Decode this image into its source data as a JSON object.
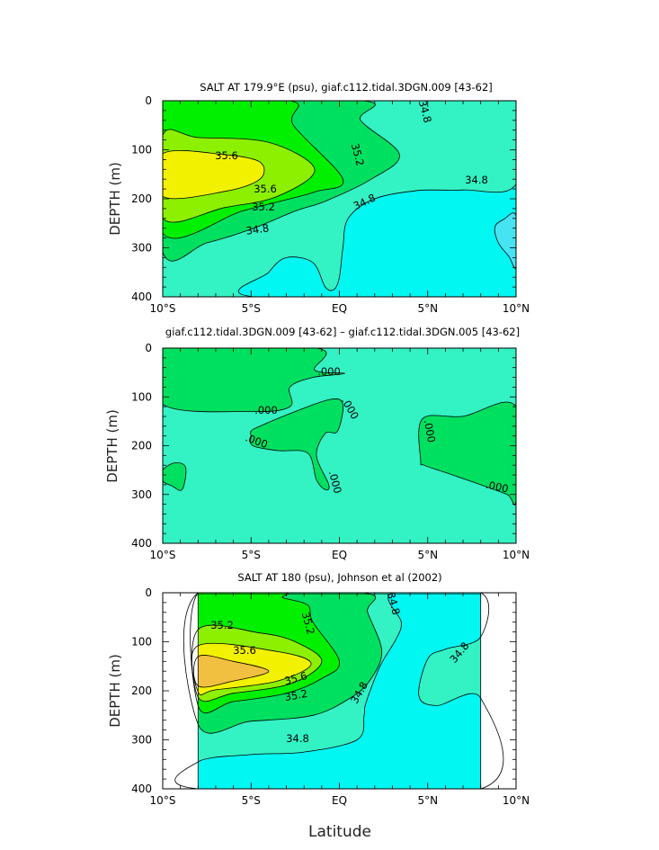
{
  "chart_data": [
    {
      "type": "contour",
      "title": "SALT AT 179.9°E (psu), giaf.c112.tidal.3DGN.009 [43-62]",
      "ylabel": "DEPTH (m)",
      "xlim": [
        -10,
        10
      ],
      "ylim": [
        400,
        0
      ],
      "xticks": [
        "10°S",
        "5°S",
        "EQ",
        "5°N",
        "10°N"
      ],
      "yticks": [
        "0",
        "100",
        "200",
        "300",
        "400"
      ],
      "contour_labels": [
        "35.6",
        "35.6",
        "35.2",
        "35.2",
        "34.8",
        "34.8",
        "34.8"
      ],
      "regions": [
        {
          "value": "34.8-35.0",
          "color": "#33f2c4",
          "points": [
            [
              -10,
              0
            ],
            [
              10,
              0
            ],
            [
              10,
              400
            ],
            [
              -10,
              400
            ]
          ]
        },
        {
          "value": "<34.8",
          "color": "#00f7f2",
          "points": [
            [
              4.5,
              0
            ],
            [
              10,
              0
            ],
            [
              10,
              170
            ],
            [
              7,
              182
            ],
            [
              4.5,
              183
            ],
            [
              2,
              200
            ],
            [
              0.5,
              240
            ],
            [
              0.2,
              300
            ],
            [
              0,
              360
            ],
            [
              -0.3,
              385
            ],
            [
              -0.8,
              380
            ],
            [
              -1.5,
              330
            ],
            [
              -3,
              320
            ],
            [
              -4,
              350
            ],
            [
              -4.8,
              400
            ],
            [
              10,
              400
            ],
            [
              10,
              175
            ],
            [
              10,
              0
            ]
          ]
        },
        {
          "value": "<34.6",
          "color": "#46e4f2",
          "points": [
            [
              10,
              235
            ],
            [
              9.3,
              242
            ],
            [
              8.8,
              258
            ],
            [
              9.0,
              290
            ],
            [
              9.6,
              318
            ],
            [
              10,
              338
            ]
          ]
        },
        {
          "value": "35.0-35.2",
          "color": "#00e060",
          "points": [
            [
              -10,
              0
            ],
            [
              1.3,
              0
            ],
            [
              1.2,
              40
            ],
            [
              3.4,
              110
            ],
            [
              1.8,
              160
            ],
            [
              -0.8,
              205
            ],
            [
              -2.5,
              225
            ],
            [
              -5,
              262
            ],
            [
              -7.5,
              290
            ],
            [
              -10,
              308
            ]
          ]
        },
        {
          "value": "35.2-35.4",
          "color": "#00f000",
          "points": [
            [
              -10,
              0
            ],
            [
              -2.8,
              0
            ],
            [
              -2.6,
              50
            ],
            [
              0.2,
              160
            ],
            [
              -1.3,
              185
            ],
            [
              -2.8,
              200
            ],
            [
              -5.5,
              225
            ],
            [
              -10,
              270
            ]
          ]
        },
        {
          "value": "35.4-35.6",
          "color": "#8cf000",
          "points": [
            [
              -10,
              70
            ],
            [
              -8,
              75
            ],
            [
              -4,
              85
            ],
            [
              -1.4,
              140
            ],
            [
              -3.5,
              195
            ],
            [
              -6.5,
              218
            ],
            [
              -10,
              240
            ]
          ]
        },
        {
          "value": ">35.6",
          "color": "#f2f200",
          "points": [
            [
              -10,
              108
            ],
            [
              -6.5,
              110
            ],
            [
              -4.5,
              125
            ],
            [
              -4.5,
              160
            ],
            [
              -6.5,
              185
            ],
            [
              -10,
              195
            ]
          ]
        }
      ]
    },
    {
      "type": "contour",
      "title": "giaf.c112.tidal.3DGN.009 [43-62] – giaf.c112.tidal.3DGN.005 [43-62]",
      "ylabel": "DEPTH (m)",
      "xlim": [
        -10,
        10
      ],
      "ylim": [
        400,
        0
      ],
      "xticks": [
        "10°S",
        "5°S",
        "EQ",
        "5°N",
        "10°N"
      ],
      "yticks": [
        "0",
        "100",
        "200",
        "300",
        "400"
      ],
      "contour_labels": [
        ".000",
        ".000",
        ".000",
        ".000",
        ".000",
        ".000",
        ".000"
      ],
      "regions": [
        {
          "value": "<0",
          "color": "#33f2c4",
          "points": [
            [
              -10,
              0
            ],
            [
              10,
              0
            ],
            [
              10,
              400
            ],
            [
              -10,
              400
            ]
          ]
        },
        {
          "value": ">0",
          "color": "#00e060",
          "points": [
            [
              -10,
              0
            ],
            [
              -1.3,
              0
            ],
            [
              -1.4,
              45
            ],
            [
              0.3,
              52
            ],
            [
              -1.5,
              60
            ],
            [
              -2.8,
              80
            ],
            [
              -2.8,
              120
            ],
            [
              -5,
              130
            ],
            [
              -10,
              115
            ]
          ]
        },
        {
          "value": ">0",
          "color": "#00e060",
          "points": [
            [
              -5,
              170
            ],
            [
              -4.5,
              160
            ],
            [
              -2.5,
              130
            ],
            [
              -0.5,
              105
            ],
            [
              0.2,
              115
            ],
            [
              -0.1,
              170
            ],
            [
              -0.8,
              175
            ],
            [
              -1.3,
              220
            ],
            [
              -0.6,
              280
            ],
            [
              -0.8,
              290
            ],
            [
              -1.3,
              270
            ],
            [
              -1.8,
              215
            ],
            [
              -3.5,
              210
            ],
            [
              -4.9,
              200
            ],
            [
              -5,
              180
            ]
          ]
        },
        {
          "value": ">0",
          "color": "#00e060",
          "points": [
            [
              4.6,
              230
            ],
            [
              4.7,
              145
            ],
            [
              7,
              140
            ],
            [
              10,
              120
            ],
            [
              10,
              310
            ],
            [
              9.5,
              300
            ],
            [
              8,
              280
            ],
            [
              6,
              255
            ],
            [
              4.8,
              240
            ]
          ]
        },
        {
          "value": ">0",
          "color": "#00e060",
          "points": [
            [
              -10,
              250
            ],
            [
              -9.3,
              235
            ],
            [
              -8.7,
              245
            ],
            [
              -8.9,
              290
            ],
            [
              -9.5,
              282
            ],
            [
              -10,
              272
            ]
          ]
        }
      ]
    },
    {
      "type": "contour",
      "title": "SALT AT 180 (psu), Johnson et al (2002)",
      "ylabel": "DEPTH (m)",
      "xlabel": "Latitude",
      "xlim": [
        -10,
        10
      ],
      "ylim": [
        400,
        0
      ],
      "xticks": [
        "10°S",
        "5°S",
        "EQ",
        "5°N",
        "10°N"
      ],
      "yticks": [
        "0",
        "100",
        "200",
        "300",
        "400"
      ],
      "data_extent": [
        -8,
        8
      ],
      "contour_labels": [
        "35.2",
        "35.2",
        "35.6",
        "35.6",
        "35.2",
        "34.8",
        "34.8",
        "34.8",
        "34.8"
      ],
      "regions": [
        {
          "value": "34.8-35.0",
          "color": "#33f2c4",
          "points": [
            [
              -8,
              0
            ],
            [
              8,
              0
            ],
            [
              8,
              400
            ],
            [
              -8,
              400
            ]
          ]
        },
        {
          "value": "<34.8",
          "color": "#00f7f2",
          "points": [
            [
              3,
              0
            ],
            [
              8,
              0
            ],
            [
              8,
              90
            ],
            [
              6,
              115
            ],
            [
              5,
              135
            ],
            [
              4.5,
              210
            ],
            [
              5.5,
              230
            ],
            [
              8,
              215
            ],
            [
              8,
              400
            ],
            [
              -8,
              400
            ],
            [
              -8,
              345
            ],
            [
              -5,
              330
            ],
            [
              -2,
              325
            ],
            [
              1,
              300
            ],
            [
              1.4,
              250
            ],
            [
              1.5,
              225
            ],
            [
              2.3,
              150
            ],
            [
              3.2,
              95
            ],
            [
              3.5,
              60
            ]
          ]
        },
        {
          "value": "35.0-35.2",
          "color": "#00e060",
          "points": [
            [
              -8,
              0
            ],
            [
              1.3,
              0
            ],
            [
              1.6,
              40
            ],
            [
              2.4,
              120
            ],
            [
              1.7,
              180
            ],
            [
              0.6,
              215
            ],
            [
              -1.5,
              250
            ],
            [
              -5,
              262
            ],
            [
              -8,
              268
            ]
          ]
        },
        {
          "value": "35.2-35.4",
          "color": "#00f000",
          "points": [
            [
              -8,
              0
            ],
            [
              -3.2,
              0
            ],
            [
              -3.2,
              10
            ],
            [
              -1.8,
              25
            ],
            [
              -1.5,
              60
            ],
            [
              0,
              140
            ],
            [
              -1,
              175
            ],
            [
              -3,
              205
            ],
            [
              -6,
              222
            ],
            [
              -8,
              230
            ]
          ]
        },
        {
          "value": "35.4-35.6",
          "color": "#8cf000",
          "points": [
            [
              -8,
              75
            ],
            [
              -4.5,
              82
            ],
            [
              -2.5,
              100
            ],
            [
              -1,
              140
            ],
            [
              -2.7,
              185
            ],
            [
              -6,
              205
            ],
            [
              -8,
              213
            ]
          ]
        },
        {
          "value": ">35.6",
          "color": "#f2f200",
          "points": [
            [
              -8,
              108
            ],
            [
              -3.5,
              120
            ],
            [
              -1.6,
              145
            ],
            [
              -3.5,
              180
            ],
            [
              -7,
              198
            ],
            [
              -8,
              202
            ]
          ]
        },
        {
          "value": ">35.8",
          "color": "#f2c040",
          "points": [
            [
              -8,
              130
            ],
            [
              -6,
              140
            ],
            [
              -4,
              160
            ],
            [
              -6,
              180
            ],
            [
              -8,
              190
            ]
          ]
        }
      ]
    }
  ]
}
